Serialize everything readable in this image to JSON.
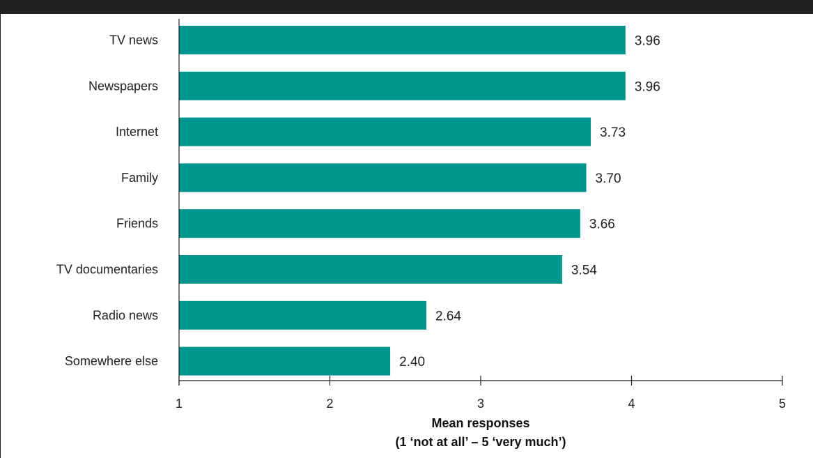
{
  "chart_data": {
    "type": "bar",
    "orientation": "horizontal",
    "categories": [
      "TV news",
      "Newspapers",
      "Internet",
      "Family",
      "Friends",
      "TV documentaries",
      "Radio news",
      "Somewhere else"
    ],
    "values": [
      3.96,
      3.96,
      3.73,
      3.7,
      3.66,
      3.54,
      2.64,
      2.4
    ],
    "value_labels": [
      "3.96",
      "3.96",
      "3.73",
      "3.70",
      "3.66",
      "3.54",
      "2.64",
      "2.40"
    ],
    "xlabel_line1": "Mean responses",
    "xlabel_line2": "(1 ‘not at all’ – 5 ‘very much’)",
    "xlim": [
      1,
      5
    ],
    "xticks": [
      1,
      2,
      3,
      4,
      5
    ],
    "grid": false,
    "colors": {
      "bar": "#009690",
      "axis": "#222222",
      "header": "#222222"
    }
  }
}
